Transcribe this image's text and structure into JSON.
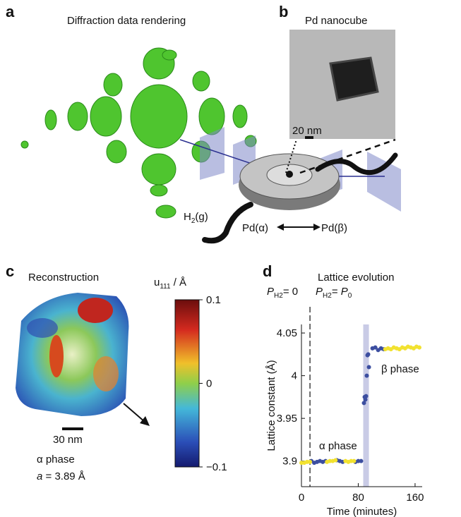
{
  "panels": {
    "a": {
      "letter": "a",
      "title": "Diffraction data rendering",
      "gas": {
        "base": "H",
        "sub": "2",
        "rest": "(g)"
      },
      "transition": {
        "left": "Pd(α)",
        "right": "Pd(β)"
      }
    },
    "b": {
      "letter": "b",
      "title": "Pd nanocube",
      "scale": "20 nm"
    },
    "c": {
      "letter": "c",
      "title": "Reconstruction",
      "scale": "30 nm",
      "phase": "α phase",
      "lattice": {
        "symbol": "a",
        "rest": " = 3.89 Å"
      },
      "colorbar": {
        "label_base": "u",
        "label_sub": "111",
        "label_rest": " / Å",
        "range": [
          -0.1,
          0.1
        ],
        "ticks": [
          0.1,
          0,
          {
            "value": -0.1,
            "label": "−0.1"
          }
        ]
      }
    },
    "d": {
      "letter": "d"
    }
  },
  "chart_data": {
    "type": "scatter",
    "title": "Lattice evolution",
    "x_label": "Time (minutes)",
    "y_label": "Lattice constant (Å)",
    "xlim": [
      0,
      170
    ],
    "ylim": [
      3.87,
      4.06
    ],
    "xticks": [
      0,
      80,
      160
    ],
    "yticks": [
      3.9,
      3.95,
      4,
      4.05
    ],
    "pressure_labels": [
      {
        "p": "P",
        "sub": "H2",
        "rest": "= 0"
      },
      {
        "p": "P",
        "sub": "H2",
        "rest": "= ",
        "p2": "P",
        "sub2": "0"
      }
    ],
    "phase_labels": [
      "α phase",
      "β phase"
    ],
    "shaded_range": [
      87,
      95
    ],
    "marker_x": 12,
    "series": [
      {
        "color": "#3c4ea0",
        "x": [
          14,
          18,
          22,
          26,
          30,
          34,
          50,
          54,
          58,
          76,
          80,
          84,
          88,
          89,
          90,
          91,
          92,
          93,
          94,
          95,
          100,
          104,
          108,
          112,
          116
        ],
        "values": [
          3.9,
          3.898,
          3.899,
          3.9,
          3.899,
          3.9,
          3.901,
          3.9,
          3.899,
          3.899,
          3.9,
          3.9,
          3.968,
          3.975,
          3.972,
          3.976,
          4.0,
          4.024,
          4.025,
          4.01,
          4.032,
          4.033,
          4.03,
          4.032,
          4.031
        ]
      },
      {
        "color": "#f2e230",
        "x": [
          0,
          4,
          8,
          12,
          36,
          40,
          44,
          48,
          62,
          66,
          70,
          74,
          118,
          122,
          126,
          130,
          134,
          138,
          142,
          146,
          150,
          154,
          158,
          162,
          166
        ],
        "values": [
          3.898,
          3.898,
          3.899,
          3.899,
          3.899,
          3.9,
          3.9,
          3.901,
          3.9,
          3.899,
          3.9,
          3.9,
          4.031,
          4.032,
          4.031,
          4.033,
          4.032,
          4.031,
          4.033,
          4.032,
          4.034,
          4.033,
          4.032,
          4.034,
          4.033
        ]
      }
    ]
  }
}
